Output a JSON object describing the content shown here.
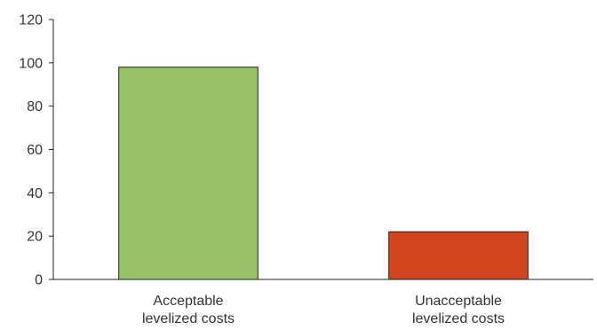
{
  "chart_data": {
    "type": "bar",
    "categories": [
      [
        "Acceptable",
        "levelized costs"
      ],
      [
        "Unacceptable",
        "levelized costs"
      ]
    ],
    "values": [
      98,
      22
    ],
    "ylim": [
      0,
      120
    ],
    "yticks": [
      0,
      20,
      40,
      60,
      80,
      100,
      120
    ],
    "grid": false,
    "legend": "none",
    "colors": {
      "bars": [
        "#97c166",
        "#d3451f"
      ],
      "bar_stroke": "#222222",
      "axis": "#222222",
      "text": "#333333"
    }
  }
}
